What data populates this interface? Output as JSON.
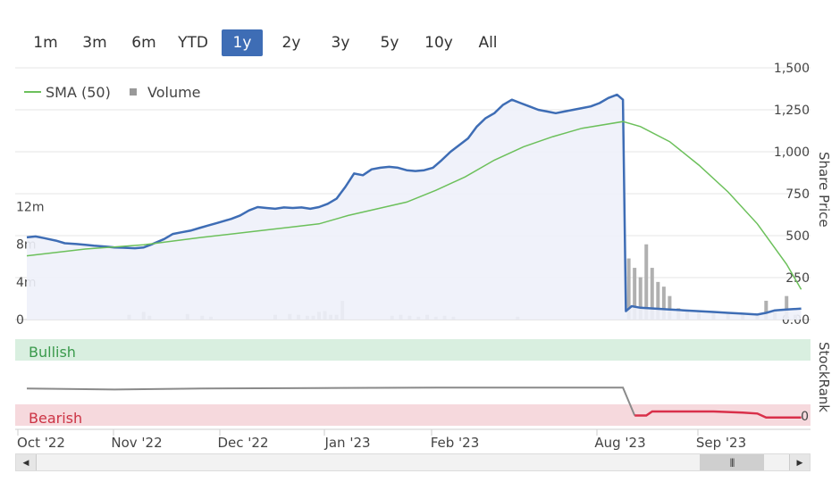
{
  "range_buttons": [
    {
      "label": "1m"
    },
    {
      "label": "3m"
    },
    {
      "label": "6m"
    },
    {
      "label": "YTD"
    },
    {
      "label": "1y",
      "active": true
    },
    {
      "label": "2y"
    },
    {
      "label": "3y"
    },
    {
      "label": "5y"
    },
    {
      "label": "10y"
    },
    {
      "label": "All"
    }
  ],
  "colors": {
    "price": "#3e6db5",
    "price_fill": "#eef1f9",
    "sma": "#6cc05b",
    "volume": "#b0b0b0",
    "stockrank": "#8a8a8a",
    "stockrank_bearish_line": "#d9304a",
    "bullish_band": "#d9efe0",
    "bullish_text": "#3a9a4c",
    "bearish_band": "#f6d9dd",
    "bearish_text": "#cc3344",
    "active_button": "#3e6db5"
  },
  "chart_data": {
    "type": "line",
    "legend": [
      {
        "name": "SMA (50)",
        "icon": "line"
      },
      {
        "name": "Volume",
        "icon": "square"
      }
    ],
    "legend_position": "top-left",
    "price_axis": {
      "label": "Share Price",
      "ticks": [
        "1,500",
        "1,250",
        "1,000",
        "750",
        "500",
        "250",
        "0.00"
      ],
      "ylim": [
        0,
        1500
      ]
    },
    "volume_axis": {
      "ticks": [
        "12m",
        "8m",
        "4m",
        "0"
      ],
      "ylim": [
        0,
        15
      ]
    },
    "stockrank_axis": {
      "label": "StockRank",
      "tick": "0"
    },
    "bands": {
      "bullish": "Bullish",
      "bearish": "Bearish"
    },
    "x_ticks": [
      "Oct '22",
      "Nov '22",
      "Dec '22",
      "Jan '23",
      "Feb '23",
      "Aug '23",
      "Sep '23"
    ],
    "series": [
      {
        "name": "Share Price",
        "points": [
          [
            0,
            490
          ],
          [
            0.3,
            495
          ],
          [
            0.6,
            485
          ],
          [
            1,
            470
          ],
          [
            1.3,
            455
          ],
          [
            1.7,
            450
          ],
          [
            2,
            445
          ],
          [
            2.3,
            440
          ],
          [
            2.7,
            435
          ],
          [
            3,
            430
          ],
          [
            3.3,
            428
          ],
          [
            3.7,
            425
          ],
          [
            4,
            430
          ],
          [
            4.3,
            450
          ],
          [
            4.7,
            480
          ],
          [
            5,
            510
          ],
          [
            5.3,
            520
          ],
          [
            5.6,
            530
          ],
          [
            5.9,
            545
          ],
          [
            6.2,
            560
          ],
          [
            6.5,
            575
          ],
          [
            6.8,
            590
          ],
          [
            7,
            600
          ],
          [
            7.3,
            620
          ],
          [
            7.6,
            650
          ],
          [
            7.9,
            670
          ],
          [
            8.2,
            665
          ],
          [
            8.5,
            660
          ],
          [
            8.8,
            668
          ],
          [
            9.1,
            665
          ],
          [
            9.4,
            668
          ],
          [
            9.7,
            660
          ],
          [
            10,
            670
          ],
          [
            10.3,
            690
          ],
          [
            10.6,
            720
          ],
          [
            10.9,
            790
          ],
          [
            11.2,
            870
          ],
          [
            11.5,
            860
          ],
          [
            11.8,
            895
          ],
          [
            12.1,
            905
          ],
          [
            12.4,
            910
          ],
          [
            12.7,
            905
          ],
          [
            13,
            890
          ],
          [
            13.3,
            885
          ],
          [
            13.6,
            890
          ],
          [
            13.9,
            905
          ],
          [
            14.2,
            950
          ],
          [
            14.5,
            1000
          ],
          [
            14.8,
            1040
          ],
          [
            15.1,
            1080
          ],
          [
            15.4,
            1150
          ],
          [
            15.7,
            1200
          ],
          [
            16,
            1230
          ],
          [
            16.3,
            1280
          ],
          [
            16.6,
            1310
          ],
          [
            16.9,
            1290
          ],
          [
            17.2,
            1270
          ],
          [
            17.5,
            1250
          ],
          [
            17.8,
            1240
          ],
          [
            18.1,
            1230
          ],
          [
            18.4,
            1240
          ],
          [
            18.7,
            1250
          ],
          [
            19,
            1260
          ],
          [
            19.3,
            1270
          ],
          [
            19.6,
            1290
          ],
          [
            19.9,
            1320
          ],
          [
            20.2,
            1340
          ],
          [
            20.4,
            1310
          ],
          [
            20.5,
            50
          ],
          [
            20.7,
            80
          ],
          [
            21,
            70
          ],
          [
            21.5,
            65
          ],
          [
            22,
            60
          ],
          [
            22.5,
            55
          ],
          [
            23,
            50
          ],
          [
            23.5,
            45
          ],
          [
            24,
            40
          ],
          [
            24.5,
            35
          ],
          [
            25,
            30
          ],
          [
            25.3,
            40
          ],
          [
            25.6,
            55
          ],
          [
            26,
            60
          ],
          [
            26.5,
            65
          ]
        ]
      },
      {
        "name": "SMA (50)",
        "points": [
          [
            0,
            380
          ],
          [
            2,
            420
          ],
          [
            4,
            445
          ],
          [
            6,
            490
          ],
          [
            8,
            530
          ],
          [
            10,
            570
          ],
          [
            11,
            620
          ],
          [
            12,
            660
          ],
          [
            13,
            700
          ],
          [
            14,
            770
          ],
          [
            15,
            850
          ],
          [
            16,
            950
          ],
          [
            17,
            1030
          ],
          [
            18,
            1090
          ],
          [
            19,
            1140
          ],
          [
            20.4,
            1180
          ],
          [
            21,
            1150
          ],
          [
            22,
            1060
          ],
          [
            23,
            920
          ],
          [
            24,
            760
          ],
          [
            25,
            570
          ],
          [
            26,
            330
          ],
          [
            26.5,
            180
          ]
        ]
      },
      {
        "name": "Volume",
        "points": [
          [
            3.5,
            0.5
          ],
          [
            4,
            0.8
          ],
          [
            4.2,
            0.4
          ],
          [
            5.5,
            0.6
          ],
          [
            6,
            0.4
          ],
          [
            6.3,
            0.3
          ],
          [
            8.5,
            0.5
          ],
          [
            9,
            0.6
          ],
          [
            9.3,
            0.5
          ],
          [
            9.6,
            0.4
          ],
          [
            9.8,
            0.4
          ],
          [
            10,
            0.8
          ],
          [
            10.2,
            0.9
          ],
          [
            10.4,
            0.5
          ],
          [
            10.6,
            0.5
          ],
          [
            10.8,
            2.0
          ],
          [
            12.5,
            0.4
          ],
          [
            12.8,
            0.5
          ],
          [
            13.1,
            0.4
          ],
          [
            13.4,
            0.3
          ],
          [
            13.7,
            0.5
          ],
          [
            14,
            0.3
          ],
          [
            14.3,
            0.4
          ],
          [
            14.6,
            0.3
          ],
          [
            16.8,
            0.3
          ],
          [
            20.6,
            6.5
          ],
          [
            20.8,
            5.5
          ],
          [
            21,
            4.5
          ],
          [
            21.2,
            8.0
          ],
          [
            21.4,
            5.5
          ],
          [
            21.6,
            4.0
          ],
          [
            21.8,
            3.5
          ],
          [
            22,
            2.5
          ],
          [
            22.3,
            1.2
          ],
          [
            22.6,
            1.0
          ],
          [
            23,
            0.8
          ],
          [
            23.5,
            0.7
          ],
          [
            24,
            0.6
          ],
          [
            24.5,
            0.5
          ],
          [
            25,
            0.4
          ],
          [
            25.3,
            2.0
          ],
          [
            25.6,
            1.0
          ],
          [
            26,
            2.5
          ],
          [
            26.3,
            0.5
          ]
        ]
      },
      {
        "name": "StockRank",
        "points": [
          [
            0,
            0.62
          ],
          [
            3,
            0.6
          ],
          [
            6,
            0.62
          ],
          [
            10,
            0.63
          ],
          [
            14,
            0.64
          ],
          [
            18,
            0.64
          ],
          [
            20.4,
            0.64
          ],
          [
            20.8,
            0.08
          ],
          [
            21.2,
            0.08
          ],
          [
            21.4,
            0.16
          ],
          [
            22,
            0.16
          ],
          [
            23.5,
            0.16
          ],
          [
            24.5,
            0.14
          ],
          [
            25,
            0.12
          ],
          [
            25.3,
            0.04
          ],
          [
            26.5,
            0.04
          ]
        ]
      }
    ]
  }
}
